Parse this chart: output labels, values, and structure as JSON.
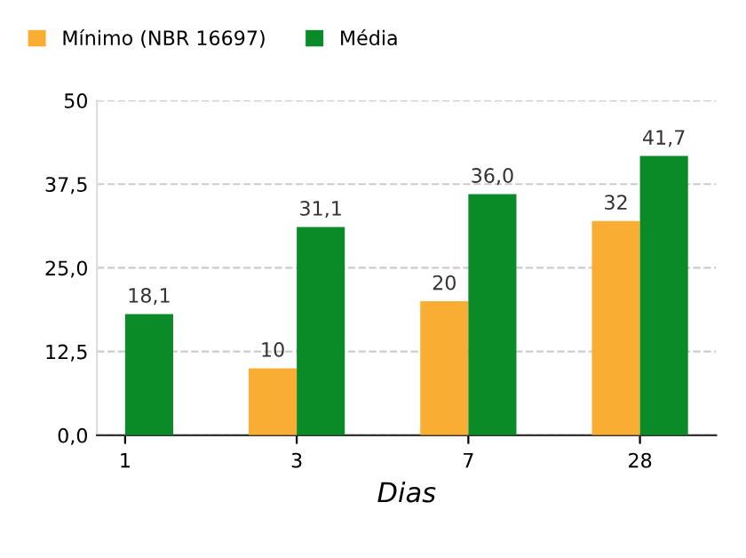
{
  "chart_data": {
    "type": "bar",
    "xlabel": "Dias",
    "categories": [
      "1",
      "3",
      "7",
      "28"
    ],
    "series": [
      {
        "name": "Mínimo (NBR 16697)",
        "color": "#f9ae33",
        "values": [
          null,
          10,
          20,
          32
        ],
        "value_labels": [
          null,
          "10",
          "20",
          "32"
        ]
      },
      {
        "name": "Média",
        "color": "#0b8a28",
        "values": [
          18.1,
          31.1,
          36.0,
          41.7
        ],
        "value_labels": [
          "18,1",
          "31,1",
          "36,0",
          "41,7"
        ]
      }
    ],
    "ylim": [
      0,
      50
    ],
    "yticks": [
      {
        "value": 0,
        "label": "0,0"
      },
      {
        "value": 12.5,
        "label": "12,5"
      },
      {
        "value": 25,
        "label": "25,0"
      },
      {
        "value": 37.5,
        "label": "37,5"
      },
      50
    ],
    "grid": "y",
    "legend": "top left"
  }
}
